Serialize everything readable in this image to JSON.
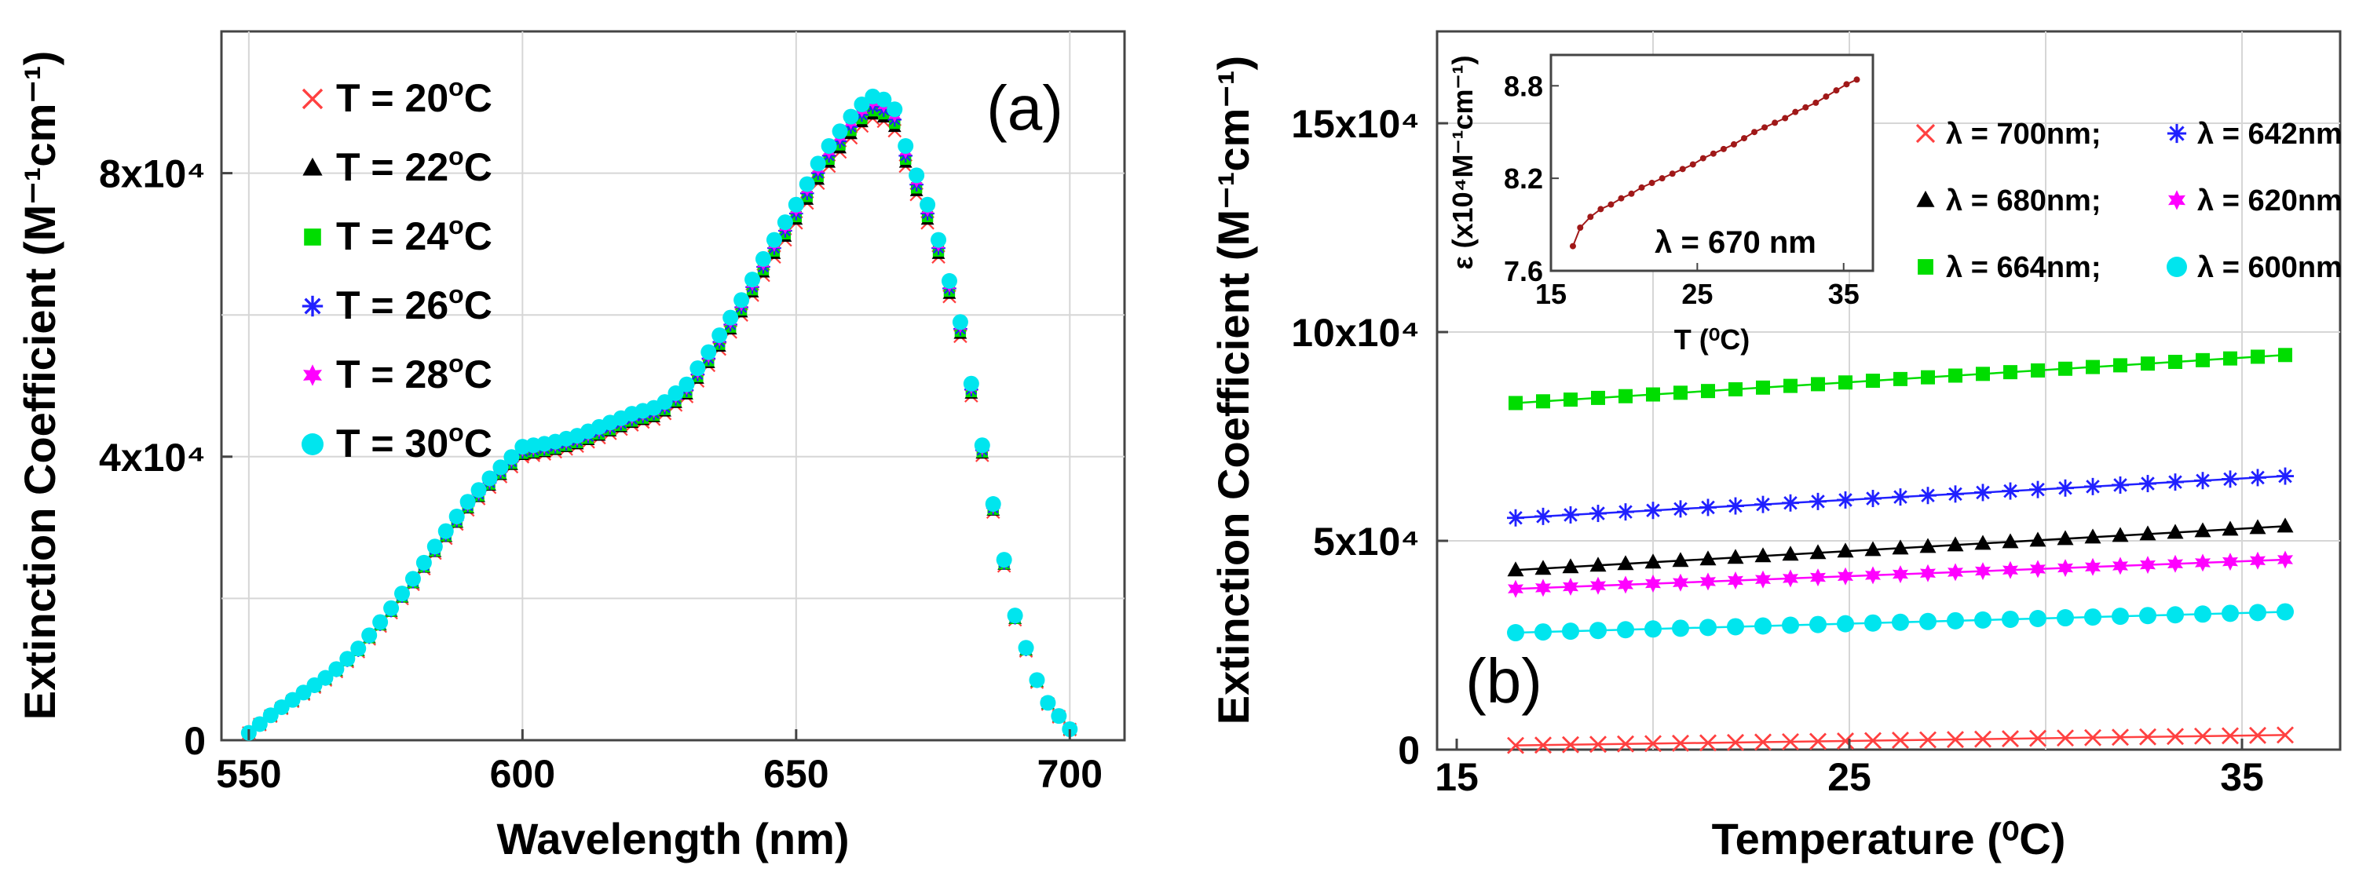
{
  "chart_data": [
    {
      "panel": "(a)",
      "type": "scatter",
      "xlabel": "Wavelength (nm)",
      "ylabel": "Extinction Coefficient (M⁻¹cm⁻¹)",
      "xlim": [
        545,
        710
      ],
      "ylim": [
        0,
        100000
      ],
      "xticks": [
        550,
        600,
        650,
        700
      ],
      "xtick_labels": [
        "550",
        "600",
        "650",
        "700"
      ],
      "yticks": [
        0,
        40000,
        80000
      ],
      "ytick_labels": [
        "0",
        "4x10⁴",
        "8x10⁴"
      ],
      "grid": true,
      "legend_position": "top-left",
      "base_spectrum": {
        "x": [
          550,
          555,
          560,
          565,
          570,
          575,
          580,
          585,
          590,
          595,
          600,
          605,
          610,
          615,
          620,
          625,
          630,
          635,
          640,
          645,
          650,
          655,
          660,
          663,
          665,
          668,
          670,
          675,
          680,
          685,
          690,
          695,
          700
        ],
        "y": [
          1000,
          4000,
          6500,
          9000,
          12500,
          17000,
          22000,
          27500,
          32500,
          36500,
          40000,
          40500,
          41500,
          43000,
          44500,
          45500,
          48500,
          54000,
          60000,
          67000,
          73000,
          80000,
          85000,
          87500,
          88000,
          86000,
          81000,
          71000,
          57000,
          36000,
          17000,
          6000,
          1500
        ]
      },
      "series": [
        {
          "name": "T = 20⁰C",
          "label_main": "T = 20",
          "label_sup": "o",
          "label_unit": "C",
          "marker": "x",
          "color": "#ff4040",
          "scale": 1.0
        },
        {
          "name": "T = 22⁰C",
          "label_main": "T = 22",
          "label_sup": "o",
          "label_unit": "C",
          "marker": "triangle",
          "color": "#000000",
          "scale": 1.006
        },
        {
          "name": "T = 24⁰C",
          "label_main": "T = 24",
          "label_sup": "o",
          "label_unit": "C",
          "marker": "square",
          "color": "#00dd00",
          "scale": 1.012
        },
        {
          "name": "T = 26⁰C",
          "label_main": "T = 26",
          "label_sup": "o",
          "label_unit": "C",
          "marker": "asterisk",
          "color": "#2020ff",
          "scale": 1.018
        },
        {
          "name": "T = 28⁰C",
          "label_main": "T = 28",
          "label_sup": "o",
          "label_unit": "C",
          "marker": "star",
          "color": "#ff00ff",
          "scale": 1.025
        },
        {
          "name": "T = 30⁰C",
          "label_main": "T = 30",
          "label_sup": "o",
          "label_unit": "C",
          "marker": "circle",
          "color": "#00e5ee",
          "scale": 1.035
        }
      ]
    },
    {
      "panel": "(b)",
      "type": "scatter",
      "xlabel": "Temperature (⁰C)",
      "ylabel": "Extinction Coefficient (M⁻¹cm⁻¹)",
      "xlim": [
        14.5,
        37.5
      ],
      "ylim": [
        0,
        172000
      ],
      "xticks": [
        15,
        25,
        35
      ],
      "xtick_labels": [
        "15",
        "25",
        "35"
      ],
      "yticks": [
        0,
        50000,
        100000,
        150000
      ],
      "ytick_labels": [
        "0",
        "5x10⁴",
        "10x10⁴",
        "15x10⁴"
      ],
      "grid": true,
      "legend_position": "top-right",
      "x": [
        16.5,
        17.2,
        17.9,
        18.6,
        19.3,
        20.0,
        20.7,
        21.4,
        22.1,
        22.8,
        23.5,
        24.2,
        24.9,
        25.6,
        26.3,
        27.0,
        27.7,
        28.4,
        29.1,
        29.8,
        30.5,
        31.2,
        31.9,
        32.6,
        33.3,
        34.0,
        34.7,
        35.4,
        36.1
      ],
      "series": [
        {
          "name": "λ = 700nm;",
          "marker": "x",
          "color": "#ff4040",
          "y_start": 1000,
          "y_end": 3500
        },
        {
          "name": "λ = 680nm;",
          "marker": "triangle",
          "color": "#000000",
          "y_start": 43000,
          "y_end": 53500
        },
        {
          "name": "λ = 664nm;",
          "marker": "square",
          "color": "#00dd00",
          "y_start": 83000,
          "y_end": 94500
        },
        {
          "name": "λ = 642nm",
          "marker": "asterisk",
          "color": "#2020ff",
          "y_start": 55500,
          "y_end": 65500
        },
        {
          "name": "λ = 620nm",
          "marker": "star",
          "color": "#ff00ff",
          "y_start": 38500,
          "y_end": 45500
        },
        {
          "name": "λ = 600nm",
          "marker": "circle",
          "color": "#00e5ee",
          "y_start": 28000,
          "y_end": 33000
        }
      ],
      "inset": {
        "type": "scatter",
        "xlabel": "T (⁰C)",
        "ylabel": "ε (x10⁴M⁻¹cm⁻¹)",
        "annotation": "λ = 670 nm",
        "xlim": [
          15,
          37
        ],
        "ylim": [
          7.6,
          9.0
        ],
        "xticks": [
          15,
          25,
          35
        ],
        "xtick_labels": [
          "15",
          "25",
          "35"
        ],
        "yticks": [
          7.6,
          8.2,
          8.8
        ],
        "ytick_labels": [
          "7.6",
          "8.2",
          "8.8"
        ],
        "color": "#a01818",
        "x": [
          16.5,
          17.0,
          17.7,
          18.4,
          19.1,
          19.8,
          20.5,
          21.2,
          21.9,
          22.6,
          23.3,
          24.0,
          24.7,
          25.4,
          26.1,
          26.8,
          27.5,
          28.2,
          28.9,
          29.6,
          30.3,
          31.0,
          31.7,
          32.4,
          33.1,
          33.8,
          34.5,
          35.2,
          35.9
        ],
        "y": [
          7.76,
          7.88,
          7.95,
          8.0,
          8.03,
          8.07,
          8.1,
          8.14,
          8.17,
          8.2,
          8.23,
          8.26,
          8.29,
          8.33,
          8.36,
          8.39,
          8.42,
          8.46,
          8.5,
          8.53,
          8.56,
          8.59,
          8.63,
          8.66,
          8.69,
          8.73,
          8.77,
          8.81,
          8.84
        ]
      }
    }
  ]
}
